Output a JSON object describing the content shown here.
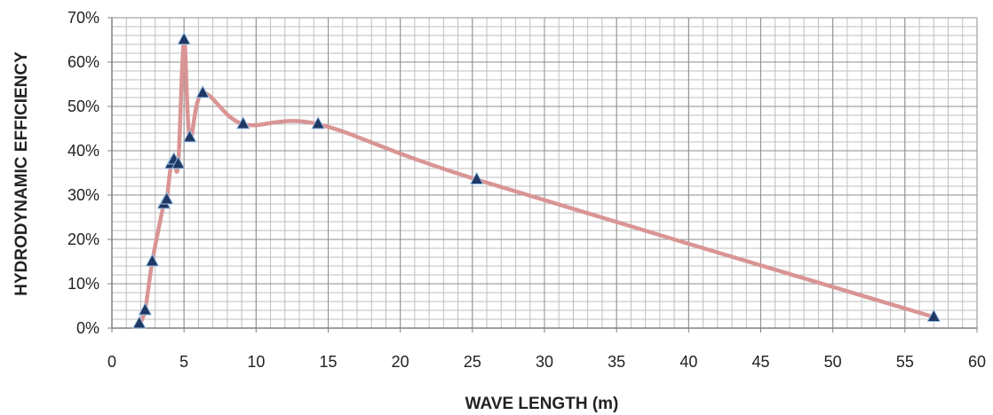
{
  "chart_data": {
    "type": "line",
    "xlabel": "WAVE LENGTH (m)",
    "ylabel": "HYDRODYNAMIC EFFICIENCY",
    "xlim": [
      0,
      60
    ],
    "ylim": [
      0,
      0.7
    ],
    "x_major_ticks": [
      "0",
      "5",
      "10",
      "15",
      "20",
      "25",
      "30",
      "35",
      "40",
      "45",
      "50",
      "55",
      "60"
    ],
    "y_major_ticks": [
      "0%",
      "10%",
      "20%",
      "30%",
      "40%",
      "50%",
      "60%",
      "70%"
    ],
    "grid": true,
    "series": [
      {
        "color": "#d99594",
        "marker": "triangle",
        "marker_color": "#1f3864",
        "points": [
          {
            "x": 1.9,
            "y": 0.01
          },
          {
            "x": 2.3,
            "y": 0.04
          },
          {
            "x": 2.8,
            "y": 0.15
          },
          {
            "x": 3.6,
            "y": 0.28
          },
          {
            "x": 3.8,
            "y": 0.29
          },
          {
            "x": 4.1,
            "y": 0.37
          },
          {
            "x": 4.3,
            "y": 0.38
          },
          {
            "x": 4.6,
            "y": 0.37
          },
          {
            "x": 5.0,
            "y": 0.65
          },
          {
            "x": 5.4,
            "y": 0.43
          },
          {
            "x": 6.3,
            "y": 0.53
          },
          {
            "x": 9.1,
            "y": 0.46
          },
          {
            "x": 14.3,
            "y": 0.46
          },
          {
            "x": 25.3,
            "y": 0.335
          },
          {
            "x": 57.0,
            "y": 0.025
          }
        ]
      }
    ]
  }
}
